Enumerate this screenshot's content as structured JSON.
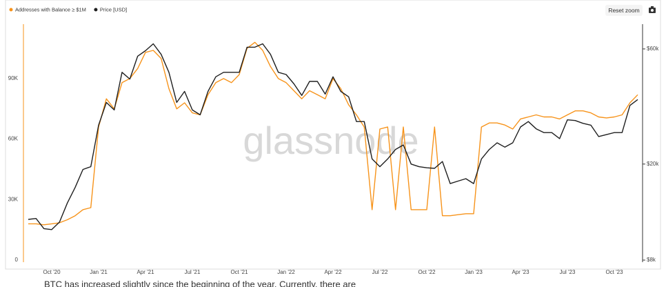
{
  "chart_data": {
    "type": "line",
    "legend_position": "top-left",
    "reset_zoom": "Reset zoom",
    "watermark": "glassnode",
    "categories": [
      null,
      null,
      null,
      "Oct '20",
      null,
      null,
      null,
      null,
      null,
      "Jan '21",
      null,
      null,
      null,
      null,
      null,
      "Apr '21",
      null,
      null,
      null,
      null,
      null,
      "Jul '21",
      null,
      null,
      null,
      null,
      null,
      "Oct '21",
      null,
      null,
      null,
      null,
      null,
      "Jan '22",
      null,
      null,
      null,
      null,
      null,
      "Apr '22",
      null,
      null,
      null,
      null,
      null,
      "Jul '22",
      null,
      null,
      null,
      null,
      null,
      "Oct '22",
      null,
      null,
      null,
      null,
      null,
      "Jan '23",
      null,
      null,
      null,
      null,
      null,
      "Apr '23",
      null,
      null,
      null,
      null,
      null,
      "Jul '23",
      null,
      null,
      null,
      null,
      null,
      "Oct '23",
      null,
      null,
      null
    ],
    "series": [
      {
        "name": "Addresses with Balance ≥ $1M",
        "color": "#f7931a",
        "axis": "y",
        "values": [
          18000,
          18000,
          17500,
          18000,
          18500,
          20000,
          22000,
          25000,
          26000,
          66000,
          80000,
          75000,
          88000,
          90000,
          95000,
          103000,
          104000,
          100000,
          85000,
          75000,
          78000,
          73000,
          72000,
          82000,
          88000,
          90000,
          88000,
          92000,
          105000,
          108000,
          104000,
          96000,
          90000,
          88000,
          84000,
          80000,
          84000,
          82000,
          80000,
          90000,
          85000,
          77000,
          72000,
          66000,
          25000,
          65000,
          66000,
          25000,
          66000,
          25000,
          25000,
          25000,
          66000,
          22000,
          22000,
          22500,
          23000,
          23000,
          66000,
          68000,
          68000,
          67000,
          65000,
          70000,
          71000,
          72000,
          71000,
          71000,
          70000,
          72000,
          74000,
          74000,
          73000,
          71000,
          70500,
          71000,
          72000,
          78000,
          82000
        ]
      },
      {
        "name": "Price [USD]",
        "color": "#1e1e1e",
        "axis": "y2",
        "values": [
          11800,
          11900,
          10800,
          10700,
          11500,
          13800,
          16000,
          19000,
          19500,
          29000,
          36000,
          33500,
          48000,
          45000,
          56000,
          59000,
          63000,
          57000,
          48000,
          36000,
          40000,
          33500,
          32000,
          40000,
          46000,
          48000,
          48000,
          48000,
          61000,
          61000,
          63000,
          57000,
          48000,
          47000,
          43000,
          38500,
          44000,
          44000,
          39000,
          46000,
          40000,
          38000,
          30000,
          30000,
          21000,
          19500,
          21000,
          23000,
          24000,
          20000,
          19500,
          19300,
          19200,
          20500,
          16600,
          17000,
          17400,
          16600,
          21000,
          23000,
          24500,
          23500,
          24500,
          28500,
          30000,
          28000,
          27000,
          27000,
          25500,
          30500,
          30300,
          29500,
          29000,
          26000,
          26500,
          27000,
          27000,
          35000,
          37000
        ]
      }
    ],
    "ylim": [
      0,
      117000
    ],
    "yticks": [
      0,
      {
        "value": 30000,
        "label": "30K"
      },
      {
        "value": 60000,
        "label": "60K"
      },
      {
        "value": 90000,
        "label": "90K"
      }
    ],
    "y2lim": [
      8000,
      76000
    ],
    "y2_log": true,
    "y2ticks": [
      {
        "value": 8000,
        "label": "$8k"
      },
      {
        "value": 20000,
        "label": "$20k"
      },
      {
        "value": 60000,
        "label": "$60k"
      }
    ],
    "grid": false
  },
  "footer_text": "BTC     has increased slightly since the beginning of the year. Currently, there are"
}
